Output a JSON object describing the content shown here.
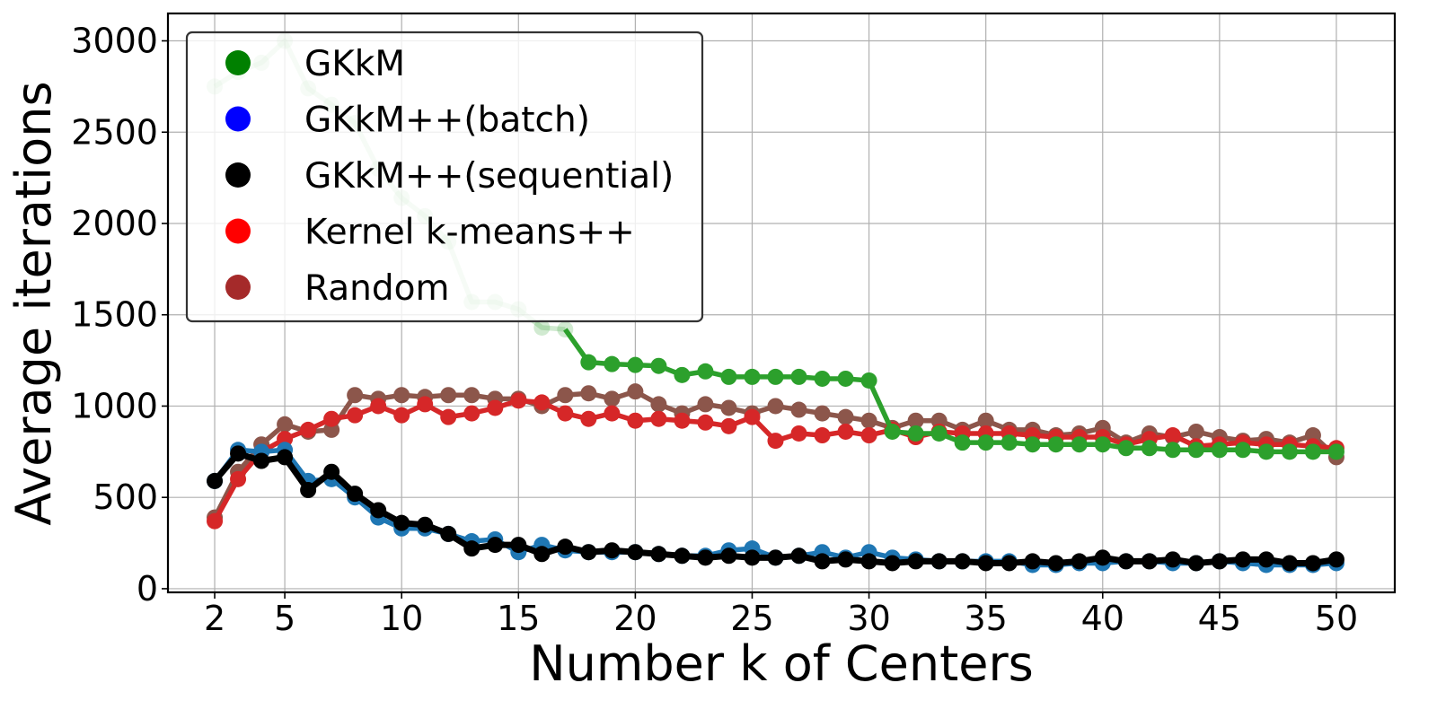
{
  "chart_data": {
    "type": "line",
    "xlabel": "Number k of Centers",
    "ylabel": "Average iterations",
    "xlim": [
      0,
      52.5
    ],
    "ylim": [
      -20,
      3150
    ],
    "xticks": [
      2,
      5,
      10,
      15,
      20,
      25,
      30,
      35,
      40,
      45,
      50
    ],
    "xtick_labels": [
      "2",
      "5",
      "10",
      "15",
      "20",
      "25",
      "30",
      "35",
      "40",
      "45",
      "50"
    ],
    "yticks": [
      0,
      500,
      1000,
      1500,
      2000,
      2500,
      3000
    ],
    "ytick_labels": [
      "0",
      "500",
      "1000",
      "1500",
      "2000",
      "2500",
      "3000"
    ],
    "grid": true,
    "legend_placement": "top-left",
    "x": [
      2,
      3,
      4,
      5,
      6,
      7,
      8,
      9,
      10,
      11,
      12,
      13,
      14,
      15,
      16,
      17,
      18,
      19,
      20,
      21,
      22,
      23,
      24,
      25,
      26,
      27,
      28,
      29,
      30,
      31,
      32,
      33,
      34,
      35,
      36,
      37,
      38,
      39,
      40,
      41,
      42,
      43,
      44,
      45,
      46,
      47,
      48,
      49,
      50
    ],
    "series": [
      {
        "name": "GKkM",
        "legend_color": "#008000",
        "color": "#2ca02c",
        "values": [
          2750,
          2830,
          2880,
          3000,
          2740,
          2650,
          2550,
          2300,
          2140,
          2040,
          1900,
          1570,
          1570,
          1530,
          1430,
          1420,
          1240,
          1230,
          1225,
          1220,
          1170,
          1190,
          1160,
          1160,
          1160,
          1160,
          1150,
          1150,
          1140,
          860,
          850,
          850,
          800,
          800,
          800,
          790,
          790,
          790,
          790,
          770,
          770,
          760,
          760,
          760,
          760,
          750,
          750,
          750,
          750
        ],
        "faded_until_x": 17
      },
      {
        "name": "GKkM++(batch)",
        "legend_color": "#0000ff",
        "color": "#1f77b4",
        "values": [
          590,
          760,
          750,
          760,
          590,
          600,
          500,
          390,
          330,
          330,
          300,
          260,
          270,
          200,
          240,
          210,
          200,
          200,
          200,
          190,
          180,
          180,
          210,
          220,
          170,
          180,
          200,
          170,
          200,
          170,
          160,
          150,
          150,
          150,
          150,
          130,
          130,
          140,
          140,
          150,
          150,
          140,
          140,
          150,
          140,
          130,
          130,
          130,
          140
        ]
      },
      {
        "name": "GKkM++(sequential)",
        "legend_color": "#000000",
        "color": "#000000",
        "values": [
          590,
          740,
          700,
          720,
          540,
          640,
          520,
          430,
          360,
          350,
          300,
          220,
          240,
          240,
          190,
          230,
          200,
          210,
          200,
          190,
          180,
          170,
          180,
          170,
          170,
          180,
          150,
          160,
          150,
          140,
          150,
          150,
          150,
          140,
          140,
          150,
          140,
          150,
          170,
          150,
          150,
          160,
          140,
          150,
          160,
          160,
          140,
          140,
          160
        ]
      },
      {
        "name": "Kernel k-means++",
        "legend_color": "#ff0000",
        "color": "#d62728",
        "values": [
          370,
          600,
          750,
          820,
          870,
          930,
          950,
          1000,
          950,
          1010,
          940,
          960,
          990,
          1030,
          1020,
          960,
          930,
          960,
          920,
          930,
          920,
          910,
          890,
          940,
          810,
          850,
          840,
          860,
          840,
          870,
          830,
          860,
          850,
          850,
          850,
          840,
          830,
          830,
          830,
          790,
          820,
          840,
          780,
          790,
          800,
          790,
          790,
          780,
          770
        ]
      },
      {
        "name": "Random",
        "legend_color": "#a52a2a",
        "color": "#8c564b",
        "values": [
          390,
          640,
          790,
          900,
          860,
          870,
          1060,
          1040,
          1060,
          1050,
          1060,
          1060,
          1040,
          1040,
          1000,
          1060,
          1070,
          1040,
          1080,
          1010,
          960,
          1010,
          990,
          960,
          1000,
          980,
          960,
          940,
          920,
          880,
          920,
          920,
          870,
          920,
          870,
          870,
          840,
          850,
          880,
          800,
          850,
          830,
          860,
          830,
          810,
          820,
          800,
          840,
          720
        ]
      }
    ]
  }
}
